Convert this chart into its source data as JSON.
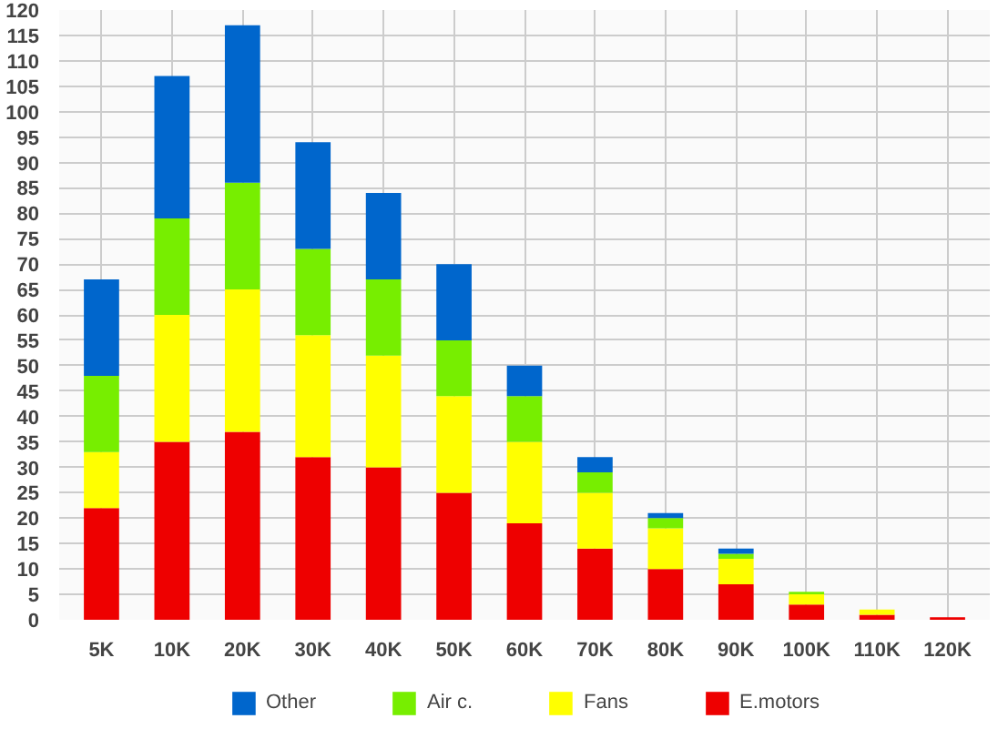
{
  "chart_data": {
    "type": "bar",
    "stacked": true,
    "categories": [
      "5K",
      "10K",
      "20K",
      "30K",
      "40K",
      "50K",
      "60K",
      "70K",
      "80K",
      "90K",
      "100K",
      "110K",
      "120K"
    ],
    "series": [
      {
        "name": "E.motors",
        "color": "#ee0000",
        "values": [
          22,
          35,
          37,
          32,
          30,
          25,
          19,
          14,
          10,
          7,
          3,
          1,
          0.5
        ]
      },
      {
        "name": "Fans",
        "color": "#ffff00",
        "values": [
          11,
          25,
          28,
          24,
          22,
          19,
          16,
          11,
          8,
          5,
          2,
          1,
          null
        ]
      },
      {
        "name": "Air c.",
        "color": "#77ee00",
        "values": [
          15,
          19,
          21,
          17,
          15,
          11,
          9,
          4,
          2,
          1,
          0.5,
          null,
          null
        ]
      },
      {
        "name": "Other",
        "color": "#0066cc",
        "values": [
          19,
          28,
          31,
          21,
          17,
          15,
          6,
          3,
          1,
          1,
          null,
          null,
          null
        ]
      }
    ],
    "ylim": [
      0,
      120
    ],
    "yticks": [
      0,
      5,
      10,
      15,
      20,
      25,
      30,
      35,
      40,
      45,
      50,
      55,
      60,
      65,
      70,
      75,
      80,
      85,
      90,
      95,
      100,
      105,
      110,
      115,
      120
    ],
    "grid": true,
    "legend": "bottom"
  }
}
